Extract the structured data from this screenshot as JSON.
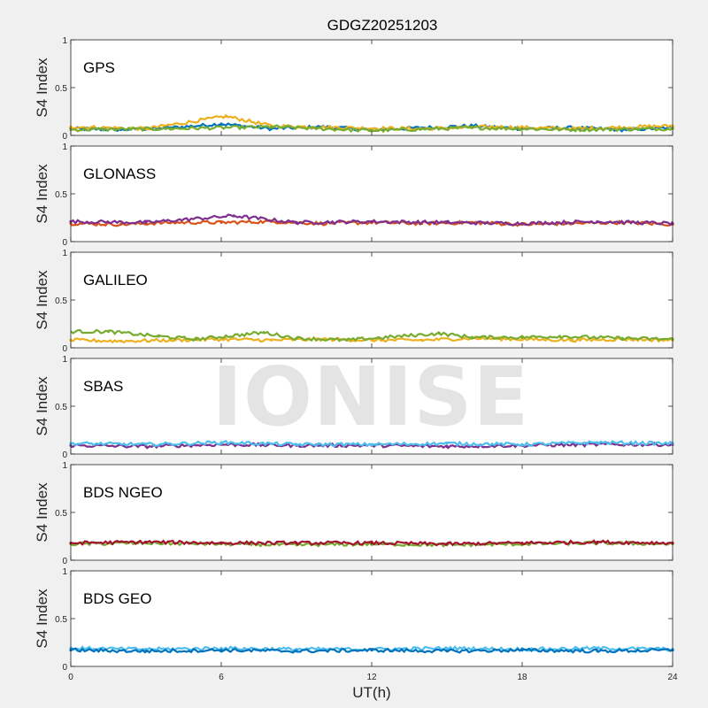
{
  "figure_title": "GDGZ20251203",
  "watermark": "IONISE",
  "colors": {
    "background": "#f0f0f0",
    "axes": "#ffffff",
    "series": [
      "#0072BD",
      "#D95319",
      "#EDB120",
      "#7E2F8E",
      "#77AC30",
      "#4DBEEE",
      "#A2142F"
    ]
  },
  "chart_data": [
    {
      "type": "scatter",
      "panel": "GPS",
      "label": "GPS",
      "xlabel": "",
      "ylabel": "S4 Index",
      "xlim": [
        0,
        24
      ],
      "ylim": [
        0,
        1
      ],
      "xticks": [
        0,
        6,
        12,
        18,
        24
      ],
      "yticks": [
        0,
        0.5,
        1
      ],
      "grid": false,
      "series": [
        {
          "values": [
            [
              0,
              0.07
            ],
            [
              2,
              0.06
            ],
            [
              4,
              0.08
            ],
            [
              6,
              0.12
            ],
            [
              8,
              0.07
            ],
            [
              10,
              0.09
            ],
            [
              12,
              0.06
            ],
            [
              14,
              0.08
            ],
            [
              16,
              0.1
            ],
            [
              18,
              0.07
            ],
            [
              20,
              0.08
            ],
            [
              22,
              0.06
            ],
            [
              24,
              0.08
            ]
          ]
        },
        {
          "values": [
            [
              0,
              0.09
            ],
            [
              3,
              0.07
            ],
            [
              6.2,
              0.2
            ],
            [
              8,
              0.1
            ],
            [
              11,
              0.08
            ],
            [
              14,
              0.07
            ],
            [
              17,
              0.09
            ],
            [
              20,
              0.07
            ],
            [
              24,
              0.1
            ]
          ]
        },
        {
          "values": [
            [
              0,
              0.06
            ],
            [
              4,
              0.07
            ],
            [
              8,
              0.09
            ],
            [
              12,
              0.05
            ],
            [
              16,
              0.08
            ],
            [
              20,
              0.06
            ],
            [
              24,
              0.07
            ]
          ]
        }
      ]
    },
    {
      "type": "scatter",
      "panel": "GLONASS",
      "label": "GLONASS",
      "xlabel": "",
      "ylabel": "S4 Index",
      "xlim": [
        0,
        24
      ],
      "ylim": [
        0,
        1
      ],
      "xticks": [
        0,
        6,
        12,
        18,
        24
      ],
      "yticks": [
        0,
        0.5,
        1
      ],
      "grid": false,
      "series": [
        {
          "values": [
            [
              0,
              0.19
            ],
            [
              2,
              0.18
            ],
            [
              4,
              0.2
            ],
            [
              6,
              0.2
            ],
            [
              8,
              0.21
            ],
            [
              10,
              0.19
            ],
            [
              12,
              0.2
            ],
            [
              14,
              0.19
            ],
            [
              16,
              0.2
            ],
            [
              18,
              0.18
            ],
            [
              20,
              0.19
            ],
            [
              22,
              0.2
            ],
            [
              24,
              0.18
            ]
          ]
        },
        {
          "values": [
            [
              0,
              0.21
            ],
            [
              3,
              0.2
            ],
            [
              6.5,
              0.27
            ],
            [
              9,
              0.2
            ],
            [
              12,
              0.21
            ],
            [
              15,
              0.2
            ],
            [
              18,
              0.19
            ],
            [
              21,
              0.21
            ],
            [
              24,
              0.19
            ]
          ]
        }
      ]
    },
    {
      "type": "scatter",
      "panel": "GALILEO",
      "label": "GALILEO",
      "xlabel": "",
      "ylabel": "S4 Index",
      "xlim": [
        0,
        24
      ],
      "ylim": [
        0,
        1
      ],
      "xticks": [
        0,
        6,
        12,
        18,
        24
      ],
      "yticks": [
        0,
        0.5,
        1
      ],
      "grid": false,
      "series": [
        {
          "values": [
            [
              0,
              0.08
            ],
            [
              2,
              0.07
            ],
            [
              4,
              0.08
            ],
            [
              6,
              0.09
            ],
            [
              8,
              0.08
            ],
            [
              10,
              0.09
            ],
            [
              12,
              0.08
            ],
            [
              14,
              0.08
            ],
            [
              16,
              0.1
            ],
            [
              18,
              0.09
            ],
            [
              20,
              0.08
            ],
            [
              22,
              0.09
            ],
            [
              24,
              0.08
            ]
          ]
        },
        {
          "values": [
            [
              1.5,
              0.17
            ],
            [
              3.5,
              0.12
            ],
            [
              5,
              0.09
            ],
            [
              7.7,
              0.16
            ],
            [
              9,
              0.1
            ],
            [
              11,
              0.08
            ],
            [
              14.7,
              0.15
            ],
            [
              16,
              0.11
            ],
            [
              18,
              0.11
            ],
            [
              19.5,
              0.12
            ],
            [
              22,
              0.1
            ],
            [
              24,
              0.09
            ]
          ]
        }
      ]
    },
    {
      "type": "scatter",
      "panel": "SBAS",
      "label": "SBAS",
      "xlabel": "",
      "ylabel": "S4 Index",
      "xlim": [
        0,
        24
      ],
      "ylim": [
        0,
        1
      ],
      "xticks": [
        0,
        6,
        12,
        18,
        24
      ],
      "yticks": [
        0,
        0.5,
        1
      ],
      "grid": false,
      "series": [
        {
          "values": [
            [
              0,
              0.09
            ],
            [
              3,
              0.08
            ],
            [
              6,
              0.1
            ],
            [
              9,
              0.09
            ],
            [
              12,
              0.09
            ],
            [
              15,
              0.08
            ],
            [
              18,
              0.09
            ],
            [
              21,
              0.1
            ],
            [
              24,
              0.1
            ]
          ]
        },
        {
          "values": [
            [
              0,
              0.11
            ],
            [
              3,
              0.1
            ],
            [
              6,
              0.12
            ],
            [
              9,
              0.1
            ],
            [
              12,
              0.1
            ],
            [
              15,
              0.11
            ],
            [
              18,
              0.1
            ],
            [
              21,
              0.12
            ],
            [
              24,
              0.11
            ]
          ]
        }
      ]
    },
    {
      "type": "scatter",
      "panel": "BDS NGEO",
      "label": "BDS NGEO",
      "xlabel": "",
      "ylabel": "S4 Index",
      "xlim": [
        0,
        24
      ],
      "ylim": [
        0,
        1
      ],
      "xticks": [
        0,
        6,
        12,
        18,
        24
      ],
      "yticks": [
        0,
        0.5,
        1
      ],
      "grid": false,
      "series": [
        {
          "values": [
            [
              0,
              0.17
            ],
            [
              3,
              0.18
            ],
            [
              6,
              0.17
            ],
            [
              9,
              0.16
            ],
            [
              12,
              0.17
            ],
            [
              15,
              0.16
            ],
            [
              18,
              0.17
            ],
            [
              21,
              0.18
            ],
            [
              24,
              0.17
            ]
          ]
        },
        {
          "values": [
            [
              0,
              0.18
            ],
            [
              3,
              0.19
            ],
            [
              6,
              0.18
            ],
            [
              9,
              0.18
            ],
            [
              12,
              0.18
            ],
            [
              15,
              0.17
            ],
            [
              18,
              0.18
            ],
            [
              21,
              0.19
            ],
            [
              24,
              0.18
            ]
          ]
        }
      ]
    },
    {
      "type": "scatter",
      "panel": "BDS GEO",
      "label": "BDS GEO",
      "xlabel": "UT(h)",
      "ylabel": "S4 Index",
      "xlim": [
        0,
        24
      ],
      "ylim": [
        0,
        1
      ],
      "xticks": [
        0,
        6,
        12,
        18,
        24
      ],
      "yticks": [
        0,
        0.5,
        1
      ],
      "grid": false,
      "series": [
        {
          "values": [
            [
              0,
              0.19
            ],
            [
              3,
              0.18
            ],
            [
              6,
              0.19
            ],
            [
              9,
              0.18
            ],
            [
              12,
              0.18
            ],
            [
              15,
              0.19
            ],
            [
              18,
              0.18
            ],
            [
              21,
              0.19
            ],
            [
              24,
              0.18
            ]
          ]
        },
        {
          "values": [
            [
              0,
              0.17
            ],
            [
              3,
              0.16
            ],
            [
              6,
              0.17
            ],
            [
              9,
              0.16
            ],
            [
              12,
              0.17
            ],
            [
              15,
              0.16
            ],
            [
              18,
              0.17
            ],
            [
              21,
              0.16
            ],
            [
              24,
              0.17
            ]
          ]
        }
      ]
    }
  ]
}
